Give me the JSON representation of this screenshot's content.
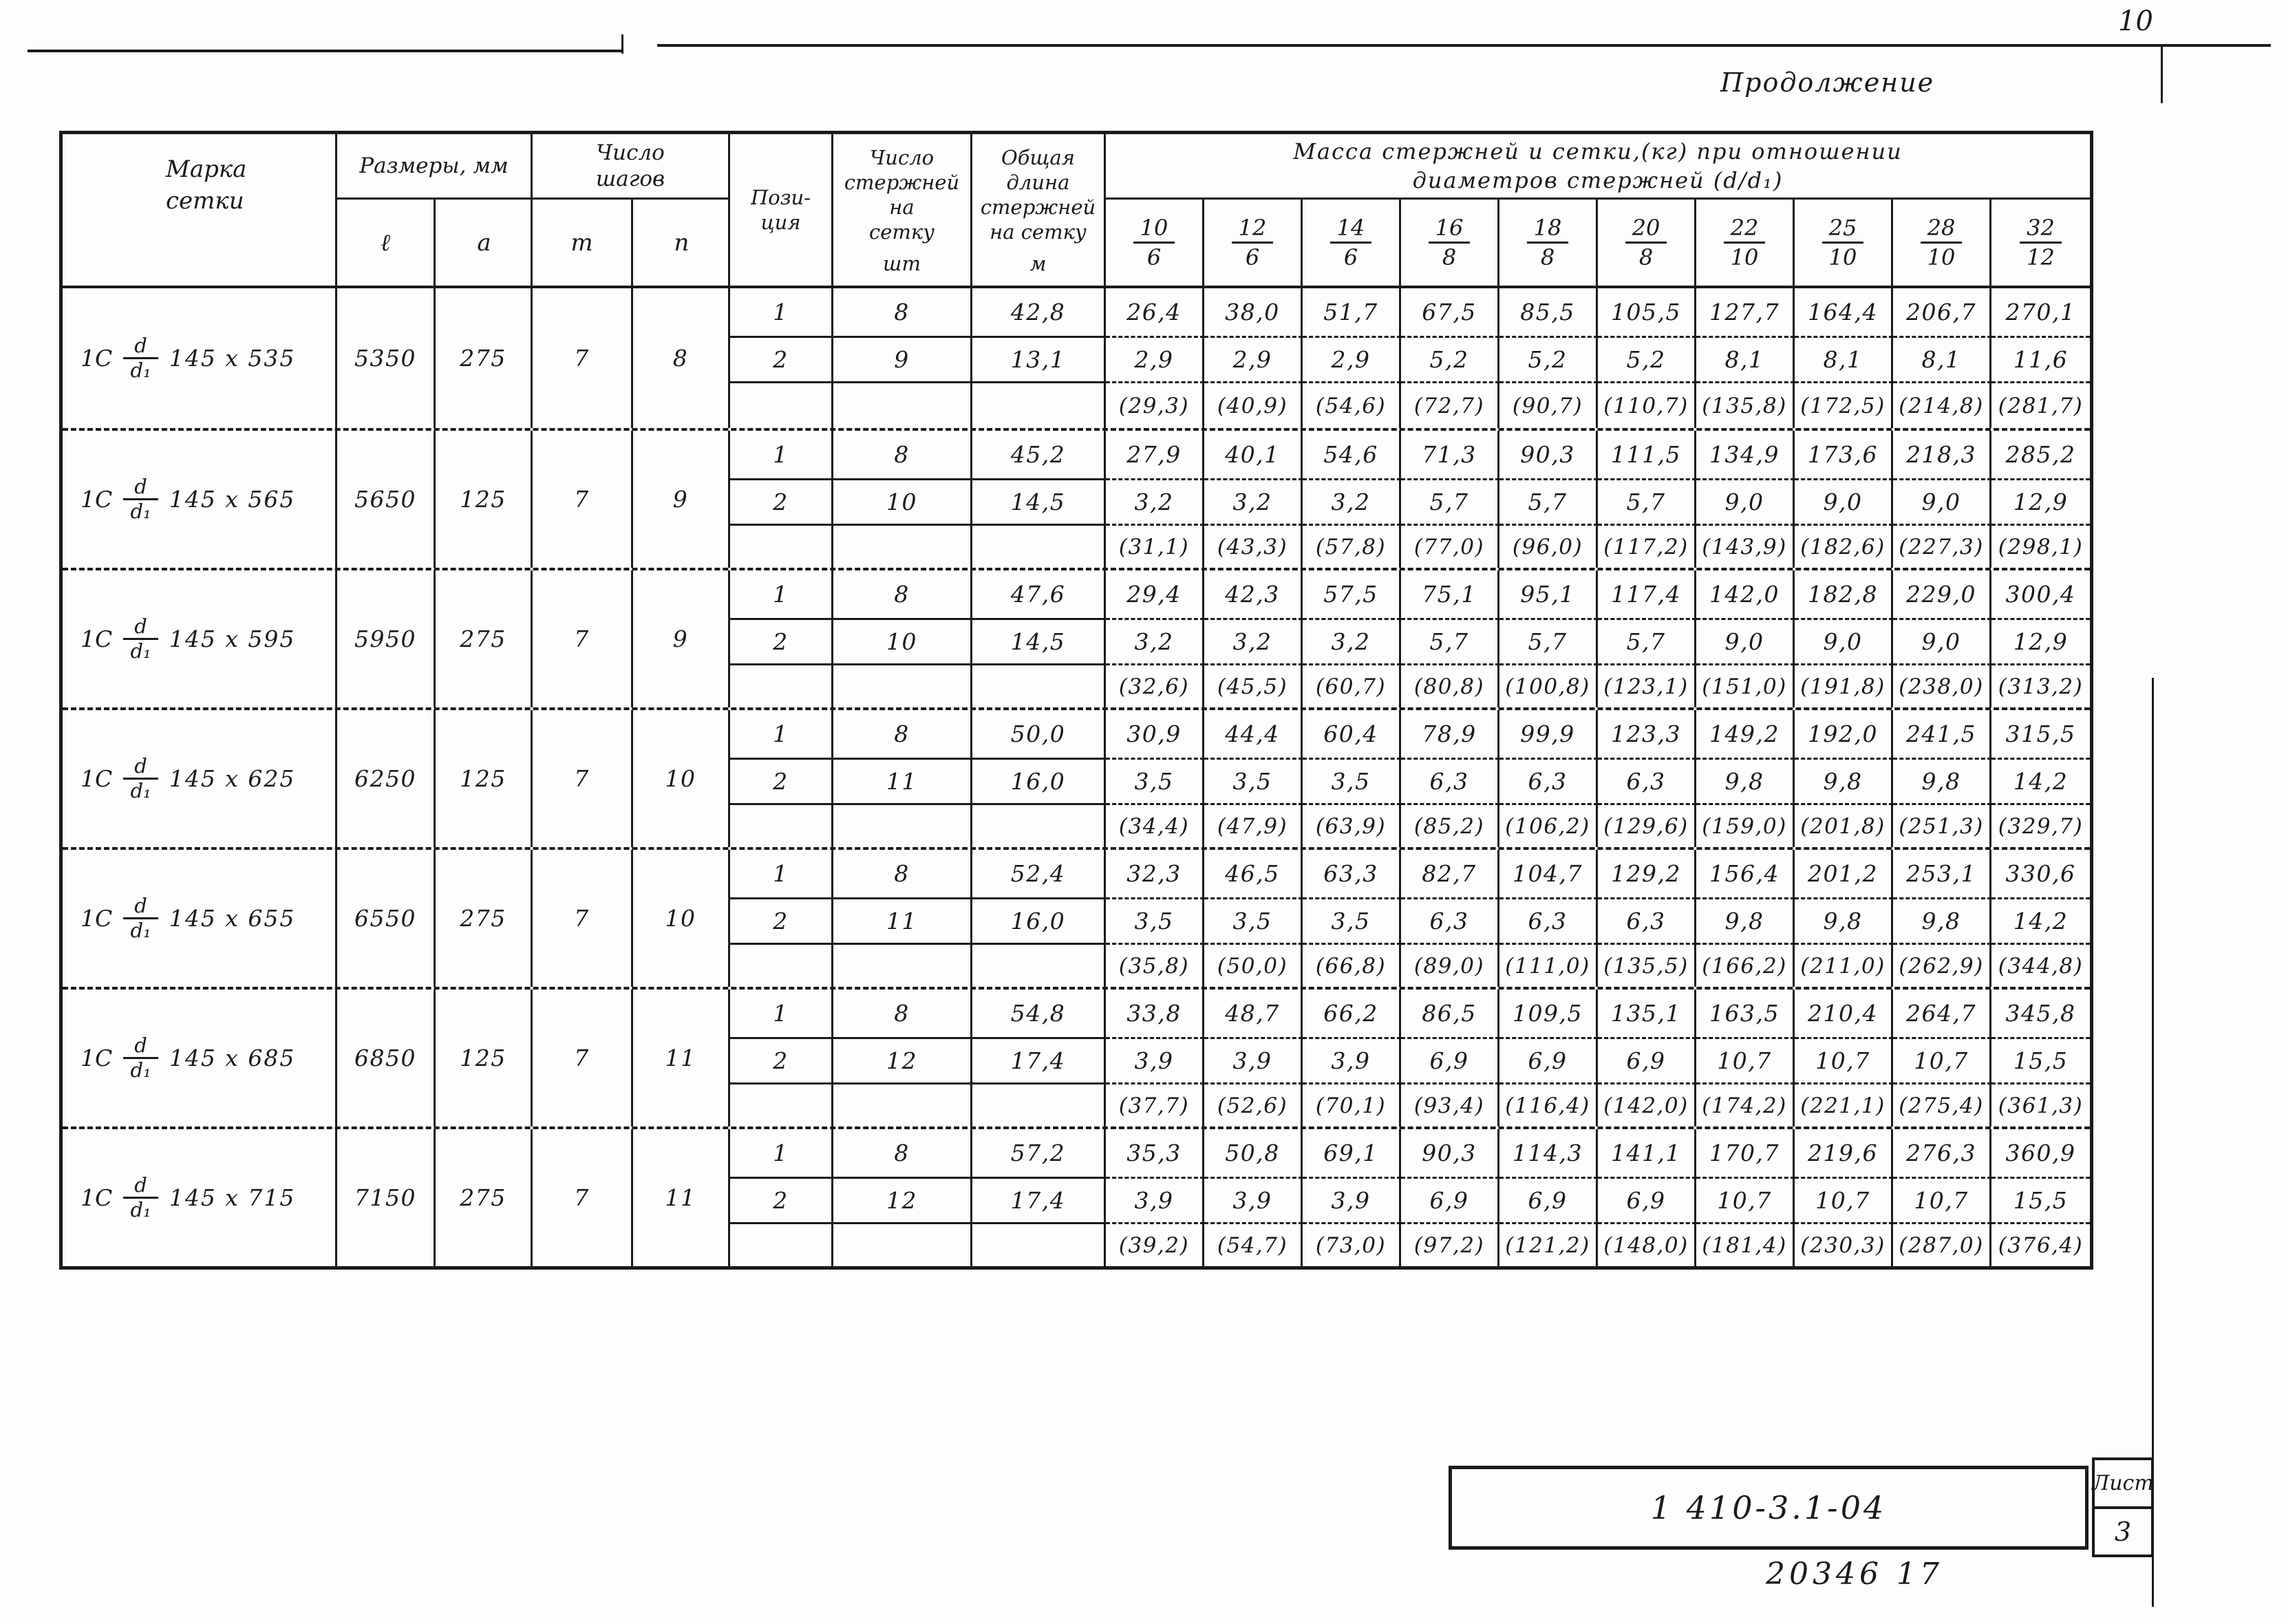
{
  "page": {
    "page_number": "10",
    "continuation": "Продолжение",
    "footer": {
      "doc_number": "1 410-3.1-04",
      "sheet_label": "Лист",
      "sheet_number": "3",
      "code": "20346  17"
    }
  },
  "table": {
    "headers": {
      "mark": [
        "Марка",
        "сетки"
      ],
      "dimensions": "Размеры, мм",
      "dim_l": "ℓ",
      "dim_a": "a",
      "steps": "Число шагов",
      "steps_m": "m",
      "steps_n": "n",
      "position": [
        "Пози-",
        "ция"
      ],
      "rod_count": [
        "Число",
        "стержней",
        "на",
        "сетку"
      ],
      "rod_count_unit": "шт",
      "total_length": [
        "Общая",
        "длина",
        "стержней",
        "на сетку"
      ],
      "total_length_unit": "м",
      "mass_caption": [
        "Масса  стержней  и  сетки,(кг)  при  отношении",
        "диаметров   стержней   (d/d₁)"
      ],
      "ratios": [
        [
          "10",
          "6"
        ],
        [
          "12",
          "6"
        ],
        [
          "14",
          "6"
        ],
        [
          "16",
          "8"
        ],
        [
          "18",
          "8"
        ],
        [
          "20",
          "8"
        ],
        [
          "22",
          "10"
        ],
        [
          "25",
          "10"
        ],
        [
          "28",
          "10"
        ],
        [
          "32",
          "12"
        ]
      ]
    },
    "groups": [
      {
        "mark": {
          "prefix": "1С",
          "num": "d",
          "den": "d₁",
          "size": "145 х 535"
        },
        "l": "5350",
        "a": "275",
        "m": "7",
        "n": "8",
        "rows": [
          {
            "pos": "1",
            "count": "8",
            "len": "42,8",
            "mass": [
              "26,4",
              "38,0",
              "51,7",
              "67,5",
              "85,5",
              "105,5",
              "127,7",
              "164,4",
              "206,7",
              "270,1"
            ]
          },
          {
            "pos": "2",
            "count": "9",
            "len": "13,1",
            "mass": [
              "2,9",
              "2,9",
              "2,9",
              "5,2",
              "5,2",
              "5,2",
              "8,1",
              "8,1",
              "8,1",
              "11,6"
            ]
          },
          {
            "pos": "",
            "count": "",
            "len": "",
            "mass": [
              "(29,3)",
              "(40,9)",
              "(54,6)",
              "(72,7)",
              "(90,7)",
              "(110,7)",
              "(135,8)",
              "(172,5)",
              "(214,8)",
              "(281,7)"
            ]
          }
        ]
      },
      {
        "mark": {
          "prefix": "1С",
          "num": "d",
          "den": "d₁",
          "size": "145 х 565"
        },
        "l": "5650",
        "a": "125",
        "m": "7",
        "n": "9",
        "rows": [
          {
            "pos": "1",
            "count": "8",
            "len": "45,2",
            "mass": [
              "27,9",
              "40,1",
              "54,6",
              "71,3",
              "90,3",
              "111,5",
              "134,9",
              "173,6",
              "218,3",
              "285,2"
            ]
          },
          {
            "pos": "2",
            "count": "10",
            "len": "14,5",
            "mass": [
              "3,2",
              "3,2",
              "3,2",
              "5,7",
              "5,7",
              "5,7",
              "9,0",
              "9,0",
              "9,0",
              "12,9"
            ]
          },
          {
            "pos": "",
            "count": "",
            "len": "",
            "mass": [
              "(31,1)",
              "(43,3)",
              "(57,8)",
              "(77,0)",
              "(96,0)",
              "(117,2)",
              "(143,9)",
              "(182,6)",
              "(227,3)",
              "(298,1)"
            ]
          }
        ]
      },
      {
        "mark": {
          "prefix": "1С",
          "num": "d",
          "den": "d₁",
          "size": "145 х 595"
        },
        "l": "5950",
        "a": "275",
        "m": "7",
        "n": "9",
        "rows": [
          {
            "pos": "1",
            "count": "8",
            "len": "47,6",
            "mass": [
              "29,4",
              "42,3",
              "57,5",
              "75,1",
              "95,1",
              "117,4",
              "142,0",
              "182,8",
              "229,0",
              "300,4"
            ]
          },
          {
            "pos": "2",
            "count": "10",
            "len": "14,5",
            "mass": [
              "3,2",
              "3,2",
              "3,2",
              "5,7",
              "5,7",
              "5,7",
              "9,0",
              "9,0",
              "9,0",
              "12,9"
            ]
          },
          {
            "pos": "",
            "count": "",
            "len": "",
            "mass": [
              "(32,6)",
              "(45,5)",
              "(60,7)",
              "(80,8)",
              "(100,8)",
              "(123,1)",
              "(151,0)",
              "(191,8)",
              "(238,0)",
              "(313,2)"
            ]
          }
        ]
      },
      {
        "mark": {
          "prefix": "1С",
          "num": "d",
          "den": "d₁",
          "size": "145 х 625"
        },
        "l": "6250",
        "a": "125",
        "m": "7",
        "n": "10",
        "rows": [
          {
            "pos": "1",
            "count": "8",
            "len": "50,0",
            "mass": [
              "30,9",
              "44,4",
              "60,4",
              "78,9",
              "99,9",
              "123,3",
              "149,2",
              "192,0",
              "241,5",
              "315,5"
            ]
          },
          {
            "pos": "2",
            "count": "11",
            "len": "16,0",
            "mass": [
              "3,5",
              "3,5",
              "3,5",
              "6,3",
              "6,3",
              "6,3",
              "9,8",
              "9,8",
              "9,8",
              "14,2"
            ]
          },
          {
            "pos": "",
            "count": "",
            "len": "",
            "mass": [
              "(34,4)",
              "(47,9)",
              "(63,9)",
              "(85,2)",
              "(106,2)",
              "(129,6)",
              "(159,0)",
              "(201,8)",
              "(251,3)",
              "(329,7)"
            ]
          }
        ]
      },
      {
        "mark": {
          "prefix": "1С",
          "num": "d",
          "den": "d₁",
          "size": "145 х 655"
        },
        "l": "6550",
        "a": "275",
        "m": "7",
        "n": "10",
        "rows": [
          {
            "pos": "1",
            "count": "8",
            "len": "52,4",
            "mass": [
              "32,3",
              "46,5",
              "63,3",
              "82,7",
              "104,7",
              "129,2",
              "156,4",
              "201,2",
              "253,1",
              "330,6"
            ]
          },
          {
            "pos": "2",
            "count": "11",
            "len": "16,0",
            "mass": [
              "3,5",
              "3,5",
              "3,5",
              "6,3",
              "6,3",
              "6,3",
              "9,8",
              "9,8",
              "9,8",
              "14,2"
            ]
          },
          {
            "pos": "",
            "count": "",
            "len": "",
            "mass": [
              "(35,8)",
              "(50,0)",
              "(66,8)",
              "(89,0)",
              "(111,0)",
              "(135,5)",
              "(166,2)",
              "(211,0)",
              "(262,9)",
              "(344,8)"
            ]
          }
        ]
      },
      {
        "mark": {
          "prefix": "1С",
          "num": "d",
          "den": "d₁",
          "size": "145 х 685"
        },
        "l": "6850",
        "a": "125",
        "m": "7",
        "n": "11",
        "rows": [
          {
            "pos": "1",
            "count": "8",
            "len": "54,8",
            "mass": [
              "33,8",
              "48,7",
              "66,2",
              "86,5",
              "109,5",
              "135,1",
              "163,5",
              "210,4",
              "264,7",
              "345,8"
            ]
          },
          {
            "pos": "2",
            "count": "12",
            "len": "17,4",
            "mass": [
              "3,9",
              "3,9",
              "3,9",
              "6,9",
              "6,9",
              "6,9",
              "10,7",
              "10,7",
              "10,7",
              "15,5"
            ]
          },
          {
            "pos": "",
            "count": "",
            "len": "",
            "mass": [
              "(37,7)",
              "(52,6)",
              "(70,1)",
              "(93,4)",
              "(116,4)",
              "(142,0)",
              "(174,2)",
              "(221,1)",
              "(275,4)",
              "(361,3)"
            ]
          }
        ]
      },
      {
        "mark": {
          "prefix": "1С",
          "num": "d",
          "den": "d₁",
          "size": "145 х 715"
        },
        "l": "7150",
        "a": "275",
        "m": "7",
        "n": "11",
        "rows": [
          {
            "pos": "1",
            "count": "8",
            "len": "57,2",
            "mass": [
              "35,3",
              "50,8",
              "69,1",
              "90,3",
              "114,3",
              "141,1",
              "170,7",
              "219,6",
              "276,3",
              "360,9"
            ]
          },
          {
            "pos": "2",
            "count": "12",
            "len": "17,4",
            "mass": [
              "3,9",
              "3,9",
              "3,9",
              "6,9",
              "6,9",
              "6,9",
              "10,7",
              "10,7",
              "10,7",
              "15,5"
            ]
          },
          {
            "pos": "",
            "count": "",
            "len": "",
            "mass": [
              "(39,2)",
              "(54,7)",
              "(73,0)",
              "(97,2)",
              "(121,2)",
              "(148,0)",
              "(181,4)",
              "(230,3)",
              "(287,0)",
              "(376,4)"
            ]
          }
        ]
      }
    ]
  }
}
